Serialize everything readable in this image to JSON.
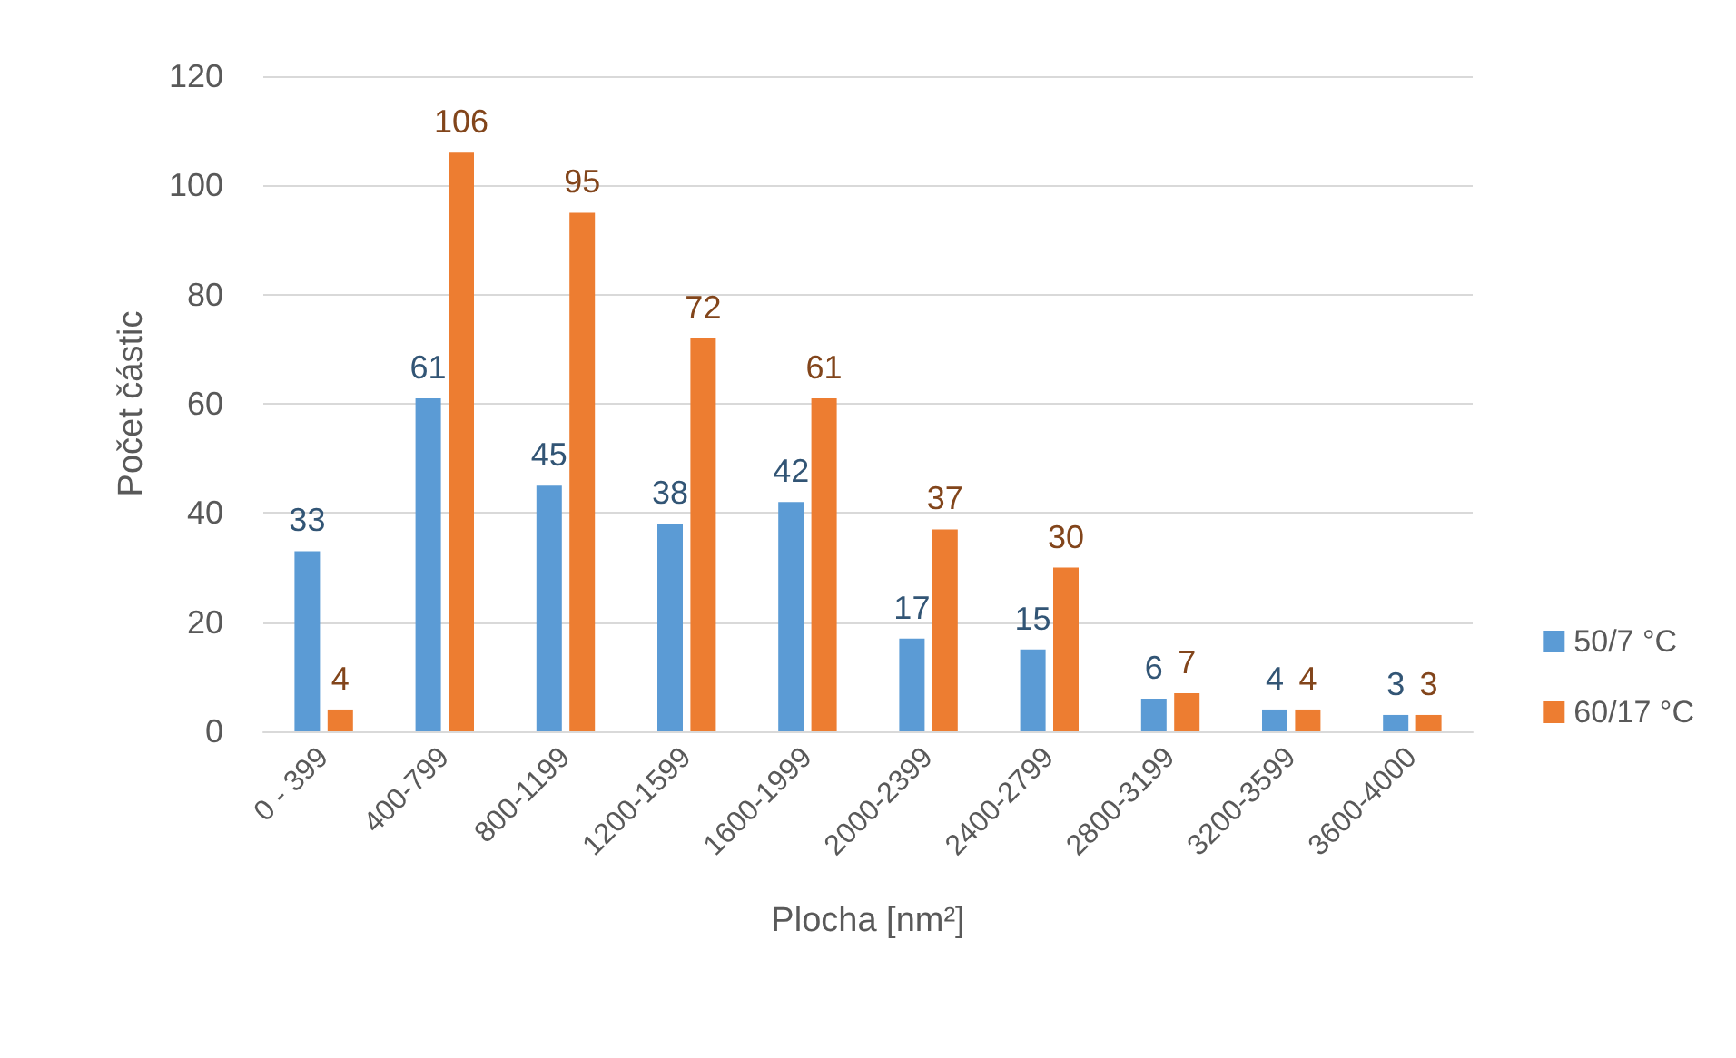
{
  "chart_data": {
    "type": "bar",
    "xlabel": "Plocha [nm²]",
    "ylabel": "Počet částic",
    "categories": [
      "0 - 399",
      "400-799",
      "800-1199",
      "1200-1599",
      "1600-1999",
      "2000-2399",
      "2400-2799",
      "2800-3199",
      "3200-3599",
      "3600-4000"
    ],
    "series": [
      {
        "name": "50/7 °C",
        "color": "#5b9bd5",
        "values": [
          33,
          61,
          45,
          38,
          42,
          17,
          15,
          6,
          4,
          3
        ]
      },
      {
        "name": "60/17 °C",
        "color": "#ed7d31",
        "values": [
          4,
          106,
          95,
          72,
          61,
          37,
          30,
          7,
          4,
          3
        ]
      }
    ],
    "ylim": [
      0,
      120
    ],
    "yticks": [
      0,
      20,
      40,
      60,
      80,
      100,
      120
    ],
    "grid": "y",
    "legend": "right",
    "data_labels": true
  }
}
